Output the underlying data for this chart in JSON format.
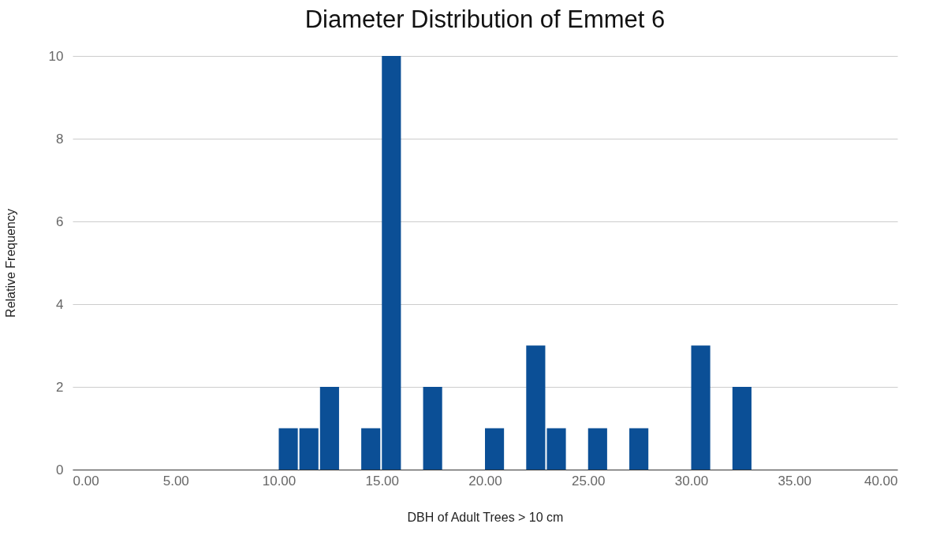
{
  "chart_data": {
    "type": "histogram",
    "title": "Diameter Distribution of Emmet 6",
    "xlabel": "DBH of Adult Trees > 10 cm",
    "ylabel": "Relative Frequency",
    "bins": [
      10,
      11,
      12,
      13,
      14,
      15,
      16,
      17,
      18,
      19,
      20,
      21,
      22,
      23,
      24,
      25,
      26,
      27,
      28,
      29,
      30,
      31,
      32,
      33
    ],
    "values": [
      1,
      1,
      2,
      0,
      1,
      10,
      0,
      2,
      0,
      0,
      1,
      0,
      3,
      1,
      0,
      1,
      0,
      1,
      0,
      0,
      3,
      0,
      2
    ],
    "color": "#0b4f96",
    "xlim": [
      0,
      40
    ],
    "xticks": [
      {
        "value": 0,
        "label": "0.00"
      },
      {
        "value": 5,
        "label": "5.00"
      },
      {
        "value": 10,
        "label": "10.00"
      },
      {
        "value": 15,
        "label": "15.00"
      },
      {
        "value": 20,
        "label": "20.00"
      },
      {
        "value": 25,
        "label": "25.00"
      },
      {
        "value": 30,
        "label": "30.00"
      },
      {
        "value": 35,
        "label": "35.00"
      },
      {
        "value": 40,
        "label": "40.00"
      }
    ],
    "ylim": [
      0,
      10
    ],
    "yticks": [
      0,
      2,
      4,
      6,
      8,
      10
    ],
    "grid": "y"
  }
}
